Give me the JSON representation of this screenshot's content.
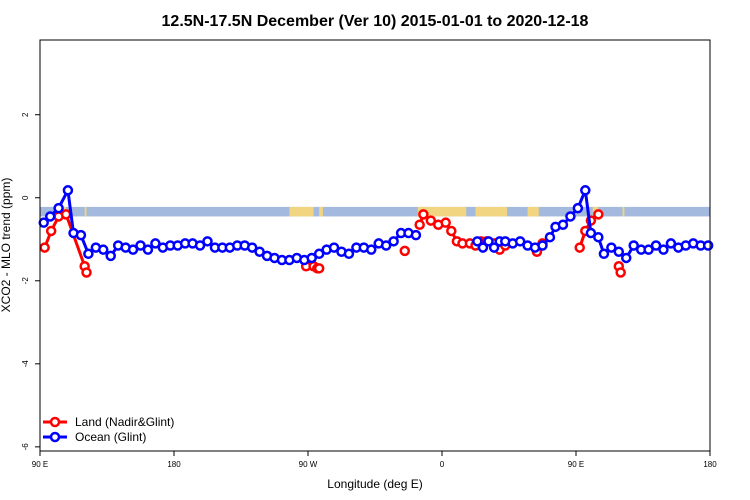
{
  "chart_data": {
    "type": "line",
    "title": "12.5N-17.5N December (Ver 10)   2015-01-01 to 2020-12-18",
    "xlabel": "Longitude (deg E)",
    "ylabel": "XCO2 - MLO trend (ppm)",
    "xlim": [
      0,
      360
    ],
    "ylim": [
      -6.1,
      3.8
    ],
    "x_tick_values": [
      0,
      72,
      144,
      216,
      288,
      360
    ],
    "x_tick_labels": [
      "90 E",
      "180",
      "90 W",
      "0",
      "90 E",
      "180"
    ],
    "y_ticks": [
      2,
      0,
      -2,
      -4,
      -6
    ],
    "colors": {
      "land": "#ff0000",
      "ocean": "#0000ff",
      "map_ocean": "#a3b9dd",
      "map_land": "#f5d67a"
    },
    "series": [
      {
        "name": "Land (Nadir&Glint)",
        "color": "#ff0000",
        "segments": [
          [
            [
              2.5,
              -1.2
            ],
            [
              6,
              -0.8
            ],
            [
              10,
              -0.45
            ],
            [
              14,
              -0.4
            ],
            [
              24,
              -1.65
            ],
            [
              25,
              -1.8
            ]
          ],
          [
            [
              143,
              -1.65
            ],
            [
              147,
              -1.65
            ],
            [
              149,
              -1.7
            ],
            [
              150,
              -1.7
            ]
          ],
          [
            [
              196,
              -1.28
            ]
          ],
          [
            [
              204,
              -0.65
            ],
            [
              206,
              -0.4
            ],
            [
              210,
              -0.55
            ],
            [
              214,
              -0.65
            ],
            [
              218,
              -0.6
            ],
            [
              221,
              -0.8
            ],
            [
              224,
              -1.05
            ],
            [
              227,
              -1.1
            ],
            [
              231,
              -1.1
            ],
            [
              234,
              -1.15
            ],
            [
              237,
              -1.05
            ],
            [
              240,
              -1.05
            ],
            [
              244,
              -1.1
            ],
            [
              247,
              -1.25
            ],
            [
              250,
              -1.15
            ]
          ],
          [
            [
              267,
              -1.3
            ],
            [
              270,
              -1.1
            ]
          ],
          [
            [
              290,
              -1.2
            ],
            [
              293,
              -0.8
            ],
            [
              296,
              -0.55
            ],
            [
              300,
              -0.4
            ]
          ],
          [
            [
              311,
              -1.65
            ],
            [
              312,
              -1.8
            ]
          ]
        ]
      },
      {
        "name": "Ocean (Glint)",
        "color": "#0000ff",
        "segments": [
          [
            [
              2,
              -0.6
            ],
            [
              5.5,
              -0.45
            ],
            [
              10,
              -0.25
            ],
            [
              15,
              0.18
            ],
            [
              18,
              -0.85
            ],
            [
              22,
              -0.9
            ],
            [
              26,
              -1.35
            ],
            [
              30,
              -1.2
            ],
            [
              34,
              -1.25
            ],
            [
              38,
              -1.4
            ],
            [
              42,
              -1.15
            ],
            [
              46,
              -1.2
            ],
            [
              50,
              -1.25
            ],
            [
              54,
              -1.15
            ],
            [
              58,
              -1.25
            ],
            [
              62,
              -1.1
            ],
            [
              66,
              -1.2
            ],
            [
              70,
              -1.15
            ],
            [
              74,
              -1.15
            ],
            [
              78,
              -1.1
            ],
            [
              82,
              -1.1
            ],
            [
              86,
              -1.15
            ],
            [
              90,
              -1.05
            ],
            [
              94,
              -1.2
            ],
            [
              98,
              -1.2
            ],
            [
              102,
              -1.2
            ],
            [
              106,
              -1.15
            ],
            [
              110,
              -1.15
            ],
            [
              114,
              -1.2
            ],
            [
              118,
              -1.3
            ],
            [
              122,
              -1.4
            ],
            [
              126,
              -1.45
            ],
            [
              130,
              -1.5
            ],
            [
              134,
              -1.5
            ],
            [
              138,
              -1.45
            ],
            [
              142,
              -1.5
            ],
            [
              146,
              -1.45
            ],
            [
              150,
              -1.35
            ],
            [
              154,
              -1.25
            ],
            [
              158,
              -1.2
            ],
            [
              162,
              -1.3
            ],
            [
              166,
              -1.35
            ],
            [
              170,
              -1.2
            ],
            [
              174,
              -1.2
            ],
            [
              178,
              -1.25
            ],
            [
              182,
              -1.1
            ],
            [
              186,
              -1.15
            ],
            [
              190,
              -1.05
            ],
            [
              194,
              -0.85
            ],
            [
              198,
              -0.85
            ],
            [
              202,
              -0.9
            ]
          ],
          [
            [
              235,
              -1.05
            ],
            [
              238,
              -1.2
            ],
            [
              241,
              -1.05
            ],
            [
              244,
              -1.2
            ],
            [
              247,
              -1.05
            ],
            [
              250,
              -1.05
            ],
            [
              254,
              -1.1
            ],
            [
              258,
              -1.05
            ],
            [
              262,
              -1.15
            ],
            [
              266,
              -1.2
            ],
            [
              270,
              -1.15
            ],
            [
              274,
              -0.95
            ],
            [
              277,
              -0.7
            ],
            [
              281,
              -0.65
            ],
            [
              285,
              -0.45
            ],
            [
              289,
              -0.25
            ],
            [
              293,
              0.18
            ],
            [
              296,
              -0.85
            ],
            [
              300,
              -0.95
            ],
            [
              303,
              -1.35
            ],
            [
              307,
              -1.2
            ],
            [
              311,
              -1.3
            ],
            [
              315,
              -1.45
            ],
            [
              319,
              -1.15
            ],
            [
              323,
              -1.25
            ],
            [
              327,
              -1.25
            ],
            [
              331,
              -1.15
            ],
            [
              335,
              -1.25
            ],
            [
              339,
              -1.1
            ],
            [
              343,
              -1.2
            ],
            [
              347,
              -1.15
            ],
            [
              351,
              -1.1
            ],
            [
              355,
              -1.15
            ],
            [
              359,
              -1.15
            ]
          ]
        ]
      }
    ],
    "map_strip": {
      "y_top": -0.22,
      "y_bottom": -0.45
    }
  }
}
